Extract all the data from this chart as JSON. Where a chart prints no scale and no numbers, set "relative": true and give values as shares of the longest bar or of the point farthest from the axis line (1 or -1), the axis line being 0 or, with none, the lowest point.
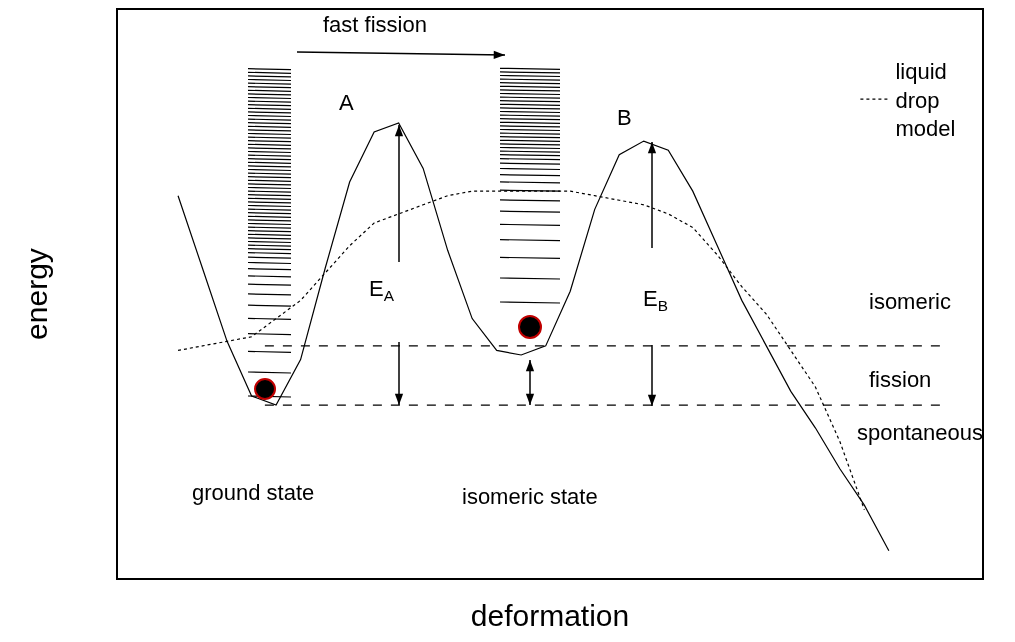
{
  "chart_data": {
    "type": "line",
    "relative": true,
    "xlabel": "deformation",
    "ylabel": "energy",
    "categories": [
      null,
      null,
      null,
      null,
      null,
      null,
      null,
      null,
      null,
      null,
      null,
      null,
      null,
      null,
      null,
      null,
      null,
      null,
      null,
      null,
      null,
      null,
      null,
      null,
      null,
      null,
      null,
      null,
      null,
      null
    ],
    "series": [
      {
        "color": "#000000",
        "line_style": "solid",
        "values": [
          0.84,
          0.68,
          0.52,
          0.4,
          0.38,
          0.48,
          0.68,
          0.87,
          0.98,
          1.0,
          0.9,
          0.72,
          0.57,
          0.5,
          0.49,
          0.51,
          0.63,
          0.81,
          0.93,
          0.96,
          0.94,
          0.85,
          0.73,
          0.61,
          0.51,
          0.41,
          0.33,
          0.24,
          0.16,
          0.06
        ]
      },
      {
        "name": "liquid drop model",
        "color": "#000000",
        "line_style": "dotted",
        "values": [
          0.5,
          0.51,
          0.52,
          0.53,
          0.57,
          0.61,
          0.67,
          0.73,
          0.78,
          0.8,
          0.82,
          0.84,
          0.85,
          0.85,
          0.85,
          0.85,
          0.85,
          0.84,
          0.83,
          0.82,
          0.8,
          0.77,
          0.71,
          0.64,
          0.58,
          0.5,
          0.42,
          0.3,
          0.15,
          null
        ]
      }
    ],
    "ref_lines": [
      {
        "axis": "y",
        "value": 0.38,
        "line_style": "dashed",
        "color": "#000000"
      },
      {
        "axis": "y",
        "value": 0.51,
        "line_style": "dashed",
        "color": "#000000"
      }
    ],
    "annotations": [
      "fast fission",
      "A",
      "B",
      "E$_{A}$",
      "E$_{B}$",
      "isomeric",
      "fission",
      "spontaneous",
      "ground state",
      "isomeric state"
    ],
    "marker": "none",
    "legend": "top right"
  }
}
